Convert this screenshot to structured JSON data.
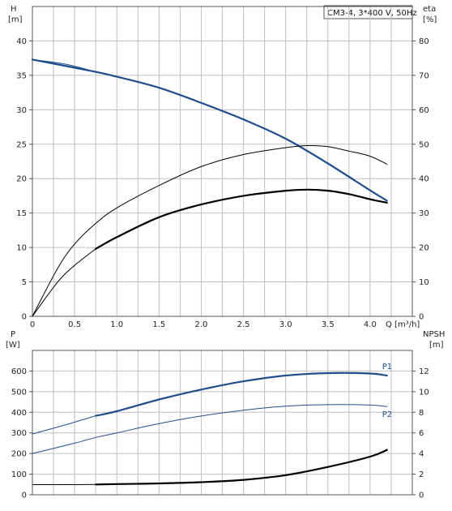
{
  "title": "CM3-4, 3*400 V, 50Hz",
  "colors": {
    "blue": "#1f4e8c",
    "black": "#000000",
    "grid": "#c0c0c0",
    "frame": "#555555"
  },
  "chart_data": [
    {
      "type": "line",
      "name": "top",
      "left_axis": {
        "label": "H",
        "unit": "[m]",
        "ylim": [
          0,
          45
        ],
        "ticks": [
          "0",
          "5",
          "10",
          "15",
          "20",
          "25",
          "30",
          "35",
          "40"
        ]
      },
      "right_axis": {
        "label": "eta",
        "unit": "[%]",
        "ylim": [
          0,
          90
        ],
        "ticks": [
          "0",
          "10",
          "20",
          "30",
          "40",
          "50",
          "60",
          "70",
          "80"
        ]
      },
      "x_axis": {
        "label": "Q [m³/h]",
        "xlim": [
          0,
          4.5
        ],
        "ticks": [
          "0",
          "0.5",
          "1.0",
          "1.5",
          "2.0",
          "2.5",
          "3.0",
          "3.5",
          "4.0"
        ]
      },
      "grid": true,
      "series": [
        {
          "key": "H",
          "axis": "left",
          "color": "#1f4e8c",
          "width": 2.2,
          "x": [
            0,
            0.75,
            1.0,
            1.5,
            2.0,
            2.5,
            3.0,
            3.5,
            4.0,
            4.2
          ],
          "y": [
            37.3,
            35.5,
            34.8,
            33.2,
            31.0,
            28.6,
            25.8,
            22.2,
            18.3,
            16.8
          ]
        },
        {
          "key": "H-ext",
          "axis": "left",
          "color": "#1f4e8c",
          "width": 1,
          "x": [
            0,
            0.4,
            0.75
          ],
          "y": [
            37.3,
            36.6,
            35.5
          ]
        },
        {
          "key": "eta-upper",
          "axis": "right",
          "color": "#000000",
          "width": 1,
          "x": [
            0,
            0.3,
            0.5,
            0.75,
            1.0,
            1.5,
            2.0,
            2.5,
            3.0,
            3.25,
            3.5,
            3.75,
            4.0,
            4.2
          ],
          "y": [
            0,
            14,
            21,
            27,
            31.5,
            38,
            43.5,
            47,
            49,
            49.6,
            49.3,
            48,
            46.5,
            44.2
          ]
        },
        {
          "key": "eta",
          "axis": "right",
          "color": "#000000",
          "width": 2.2,
          "x": [
            0.75,
            1.0,
            1.5,
            2.0,
            2.5,
            3.0,
            3.25,
            3.5,
            3.75,
            4.0,
            4.2
          ],
          "y": [
            19.6,
            23,
            28.8,
            32.5,
            35,
            36.5,
            36.8,
            36.5,
            35.5,
            34,
            33
          ]
        },
        {
          "key": "eta-ext",
          "axis": "right",
          "color": "#000000",
          "width": 1,
          "x": [
            0,
            0.3,
            0.5,
            0.75
          ],
          "y": [
            0,
            10,
            14.8,
            19.6
          ]
        }
      ]
    },
    {
      "type": "line",
      "name": "bottom",
      "left_axis": {
        "label": "P",
        "unit": "[W]",
        "ylim": [
          0,
          700
        ],
        "ticks": [
          "0",
          "100",
          "200",
          "300",
          "400",
          "500",
          "600"
        ]
      },
      "right_axis": {
        "label": "NPSH",
        "unit": "[m]",
        "ylim": [
          0,
          14
        ],
        "ticks": [
          "0",
          "2",
          "4",
          "6",
          "8",
          "10",
          "12"
        ]
      },
      "x_axis": {
        "xlim": [
          0,
          4.5
        ]
      },
      "grid": true,
      "series": [
        {
          "key": "P1",
          "label": "P1",
          "axis": "left",
          "color": "#1f4e8c",
          "width": 2.2,
          "x": [
            0.75,
            1.0,
            1.5,
            2.0,
            2.5,
            3.0,
            3.5,
            4.0,
            4.2
          ],
          "y": [
            383,
            405,
            462,
            510,
            550,
            578,
            590,
            588,
            578
          ]
        },
        {
          "key": "P1-ext",
          "axis": "left",
          "color": "#1f4e8c",
          "width": 1,
          "x": [
            0,
            0.4,
            0.75
          ],
          "y": [
            295,
            340,
            383
          ]
        },
        {
          "key": "P2",
          "label": "P2",
          "axis": "left",
          "color": "#1f4e8c",
          "width": 1,
          "x": [
            0,
            0.5,
            0.75,
            1.0,
            1.5,
            2.0,
            2.5,
            3.0,
            3.5,
            4.0,
            4.2
          ],
          "y": [
            200,
            250,
            278,
            300,
            345,
            382,
            410,
            430,
            437,
            435,
            428
          ]
        },
        {
          "key": "NPSH",
          "axis": "right",
          "color": "#000000",
          "width": 2.2,
          "x": [
            0.75,
            1.0,
            1.5,
            2.0,
            2.5,
            3.0,
            3.5,
            4.0,
            4.2
          ],
          "y": [
            1.0,
            1.04,
            1.1,
            1.22,
            1.45,
            1.9,
            2.7,
            3.7,
            4.35
          ]
        },
        {
          "key": "NPSH-ext",
          "axis": "right",
          "color": "#000000",
          "width": 1,
          "x": [
            0,
            0.4,
            0.75
          ],
          "y": [
            0.98,
            0.98,
            1.0
          ]
        }
      ]
    }
  ]
}
